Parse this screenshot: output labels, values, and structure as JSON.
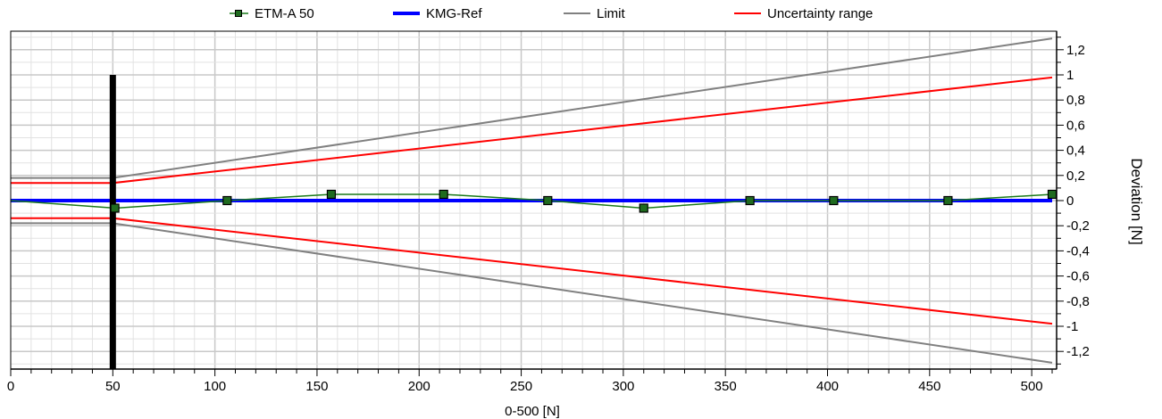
{
  "chart_data": {
    "type": "line",
    "xlabel": "0-500 [N]",
    "ylabel": "Deviation [N]",
    "xlim": [
      0,
      510
    ],
    "ylim": [
      -1.35,
      1.35
    ],
    "x_ticks": [
      0,
      50,
      100,
      150,
      200,
      250,
      300,
      350,
      400,
      450,
      500
    ],
    "x_tick_labels": [
      "0",
      "50",
      "100",
      "150",
      "200",
      "250",
      "300",
      "350",
      "400",
      "450",
      "500"
    ],
    "y_ticks": [
      1.2,
      1.0,
      0.8,
      0.6,
      0.4,
      0.2,
      0,
      -0.2,
      -0.4,
      -0.6,
      -0.8,
      -1.0,
      -1.2
    ],
    "y_tick_labels": [
      "1,2",
      "1",
      "0,8",
      "0,6",
      "0,4",
      "0,2",
      "0",
      "-0,2",
      "-0,4",
      "-0,6",
      "-0,8",
      "-1",
      "-1,2"
    ],
    "y_axis_side": "right",
    "grid": true,
    "legend_position": "top",
    "marker_bar": {
      "x": 50,
      "y_top": 1.0,
      "y_bottom": -1.35,
      "color": "#000000"
    },
    "series": [
      {
        "name": "ETM-A 50",
        "color": "#1a7a1a",
        "marker": "square",
        "marker_color": "#1f6b1f",
        "x": [
          0,
          51,
          106,
          157,
          212,
          263,
          310,
          362,
          403,
          459,
          510
        ],
        "y": [
          0,
          -0.06,
          0,
          0.05,
          0.05,
          0,
          -0.06,
          0,
          0,
          0,
          0.05
        ],
        "markers_from": 1
      },
      {
        "name": "KMG-Ref",
        "color": "#0000ff",
        "width": "thick",
        "x": [
          0,
          510
        ],
        "y": [
          0,
          0
        ]
      },
      {
        "name": "Limit",
        "color": "#808080",
        "x": [
          0,
          50,
          510
        ],
        "y": [
          0.18,
          0.18,
          1.29
        ],
        "mirror": true
      },
      {
        "name": "Uncertainty range",
        "color": "#ff0000",
        "x": [
          0,
          50,
          510
        ],
        "y": [
          0.14,
          0.14,
          0.98
        ],
        "mirror": true
      }
    ]
  }
}
